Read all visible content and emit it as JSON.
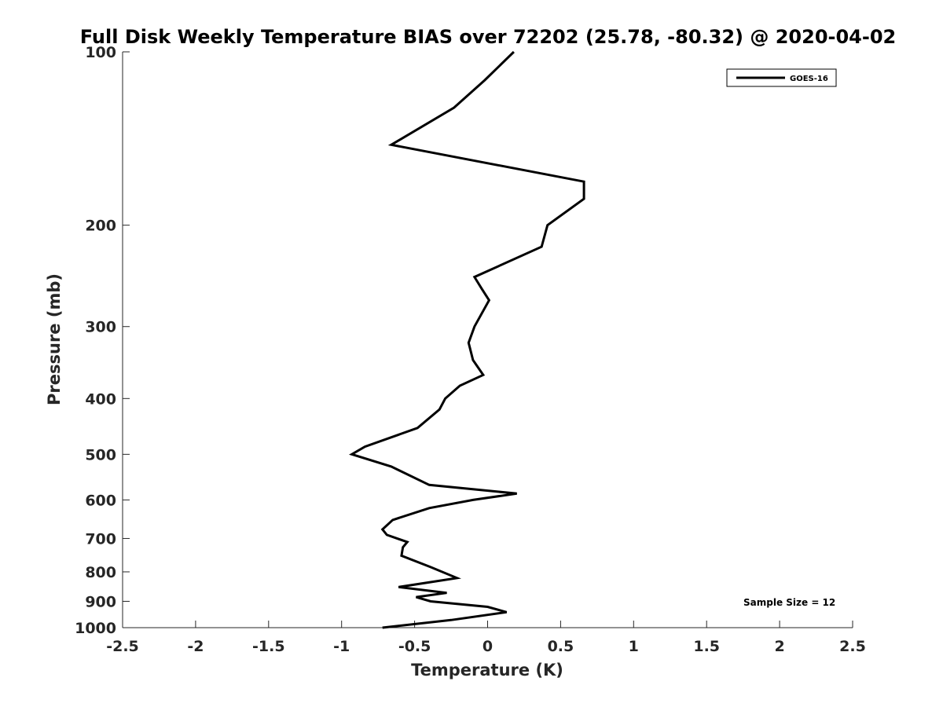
{
  "chart_data": {
    "type": "line",
    "title": "Full Disk Weekly Temperature BIAS over 72202 (25.78, -80.32) @ 2020-04-02",
    "xlabel": "Temperature (K)",
    "ylabel": "Pressure (mb)",
    "xlim": [
      -2.5,
      2.5
    ],
    "ylim": [
      100,
      1000
    ],
    "y_scale": "log",
    "y_reversed": true,
    "grid": false,
    "x_ticks": [
      -2.5,
      -2,
      -1.5,
      -1,
      -0.5,
      0,
      0.5,
      1,
      1.5,
      2,
      2.5
    ],
    "x_tick_labels": [
      "-2.5",
      "-2",
      "-1.5",
      "-1",
      "-0.5",
      "0",
      "0.5",
      "1",
      "1.5",
      "2",
      "2.5"
    ],
    "y_ticks": [
      100,
      200,
      300,
      400,
      500,
      600,
      700,
      800,
      900,
      1000
    ],
    "y_tick_labels": [
      "100",
      "200",
      "300",
      "400",
      "500",
      "600",
      "700",
      "800",
      "900",
      "1000"
    ],
    "legend": {
      "position": "top-right",
      "entries": [
        "GOES-16"
      ]
    },
    "annotation": "Sample Size = 12",
    "series": [
      {
        "name": "GOES-16",
        "color": "#000000",
        "x": [
          0.18,
          -0.02,
          -0.23,
          -0.66,
          0.66,
          0.66,
          0.41,
          0.37,
          -0.09,
          -0.04,
          0.01,
          -0.09,
          -0.13,
          -0.1,
          -0.03,
          -0.19,
          -0.29,
          -0.33,
          -0.48,
          -0.84,
          -0.93,
          -0.66,
          -0.4,
          0.2,
          -0.1,
          -0.4,
          -0.65,
          -0.72,
          -0.69,
          -0.55,
          -0.58,
          -0.59,
          -0.39,
          -0.21,
          -0.61,
          -0.28,
          -0.49,
          -0.39,
          0.0,
          0.13,
          -0.25,
          -0.72
        ],
        "y": [
          100,
          112,
          125,
          145,
          168,
          180,
          200,
          218,
          246,
          258,
          270,
          300,
          320,
          343,
          364,
          380,
          400,
          418,
          450,
          485,
          500,
          525,
          565,
          585,
          600,
          620,
          650,
          675,
          690,
          710,
          725,
          750,
          785,
          820,
          850,
          870,
          885,
          900,
          920,
          940,
          970,
          1000
        ]
      }
    ]
  }
}
